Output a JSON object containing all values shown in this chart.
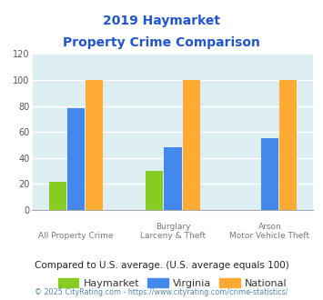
{
  "title_line1": "2019 Haymarket",
  "title_line2": "Property Crime Comparison",
  "cat_labels_top": [
    "",
    "Burglary",
    "Arson"
  ],
  "cat_labels_bot": [
    "All Property Crime",
    "Larceny & Theft",
    "Motor Vehicle Theft"
  ],
  "groups": [
    {
      "label": "Haymarket",
      "color": "#88cc22",
      "values": [
        22,
        30,
        0
      ]
    },
    {
      "label": "Virginia",
      "color": "#4488ee",
      "values": [
        78,
        48,
        55
      ]
    },
    {
      "label": "National",
      "color": "#ffaa33",
      "values": [
        100,
        100,
        100
      ]
    }
  ],
  "ylim": [
    0,
    120
  ],
  "yticks": [
    0,
    20,
    40,
    60,
    80,
    100,
    120
  ],
  "plot_bg": "#ddeef2",
  "fig_bg": "#ffffff",
  "title_color": "#2255cc",
  "legend_text_color": "#333333",
  "footer_text": "Compared to U.S. average. (U.S. average equals 100)",
  "copyright_text": "© 2025 CityRating.com - https://www.cityrating.com/crime-statistics/",
  "footer_color": "#222222",
  "copyright_color": "#5588aa",
  "bar_width": 0.18,
  "group_positions": [
    0.25,
    0.5,
    0.75
  ]
}
